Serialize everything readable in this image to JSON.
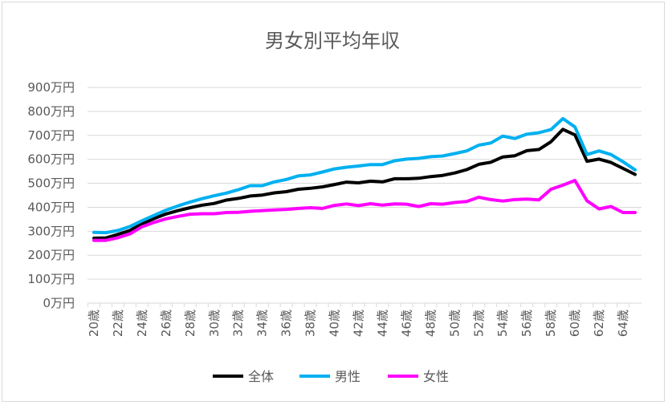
{
  "chart_data": {
    "type": "line",
    "title": "男女別平均年収",
    "xlabel": "",
    "ylabel": "",
    "ylim": [
      0,
      900
    ],
    "y_ticks": [
      "0万円",
      "100万円",
      "200万円",
      "300万円",
      "400万円",
      "500万円",
      "600万円",
      "700万円",
      "800万円",
      "900万円"
    ],
    "x_tick_labels": [
      "20歳",
      "22歳",
      "24歳",
      "26歳",
      "28歳",
      "30歳",
      "32歳",
      "34歳",
      "36歳",
      "38歳",
      "40歳",
      "42歳",
      "44歳",
      "46歳",
      "48歳",
      "50歳",
      "52歳",
      "54歳",
      "56歳",
      "58歳",
      "60歳",
      "62歳",
      "64歳"
    ],
    "grid": true,
    "legend_position": "bottom",
    "x": [
      20,
      21,
      22,
      23,
      24,
      25,
      26,
      27,
      28,
      29,
      30,
      31,
      32,
      33,
      34,
      35,
      36,
      37,
      38,
      39,
      40,
      41,
      42,
      43,
      44,
      45,
      46,
      47,
      48,
      49,
      50,
      51,
      52,
      53,
      54,
      55,
      56,
      57,
      58,
      59,
      60,
      61,
      62,
      63,
      64,
      65
    ],
    "series": [
      {
        "name": "全体",
        "color": "#000000",
        "values": [
          271,
          272,
          287,
          303,
          331,
          353,
          372,
          386,
          398,
          409,
          416,
          430,
          437,
          447,
          451,
          460,
          465,
          475,
          479,
          485,
          495,
          505,
          502,
          509,
          506,
          519,
          519,
          521,
          528,
          533,
          543,
          557,
          579,
          588,
          610,
          615,
          636,
          641,
          673,
          725,
          702,
          592,
          601,
          587,
          562,
          537
        ]
      },
      {
        "name": "男性",
        "color": "#00b0f0",
        "values": [
          295,
          294,
          303,
          320,
          344,
          366,
          388,
          406,
          422,
          436,
          448,
          459,
          473,
          490,
          490,
          506,
          516,
          531,
          535,
          547,
          560,
          567,
          572,
          578,
          578,
          594,
          601,
          604,
          611,
          614,
          624,
          635,
          659,
          668,
          697,
          687,
          705,
          711,
          724,
          770,
          735,
          620,
          635,
          620,
          590,
          556
        ]
      },
      {
        "name": "女性",
        "color": "#ff00ff",
        "values": [
          262,
          262,
          273,
          289,
          319,
          337,
          352,
          362,
          371,
          373,
          373,
          378,
          379,
          383,
          386,
          389,
          391,
          395,
          398,
          395,
          408,
          414,
          407,
          415,
          409,
          414,
          413,
          403,
          415,
          413,
          420,
          424,
          442,
          432,
          426,
          432,
          434,
          431,
          475,
          492,
          512,
          427,
          393,
          403,
          378,
          378
        ]
      }
    ]
  }
}
